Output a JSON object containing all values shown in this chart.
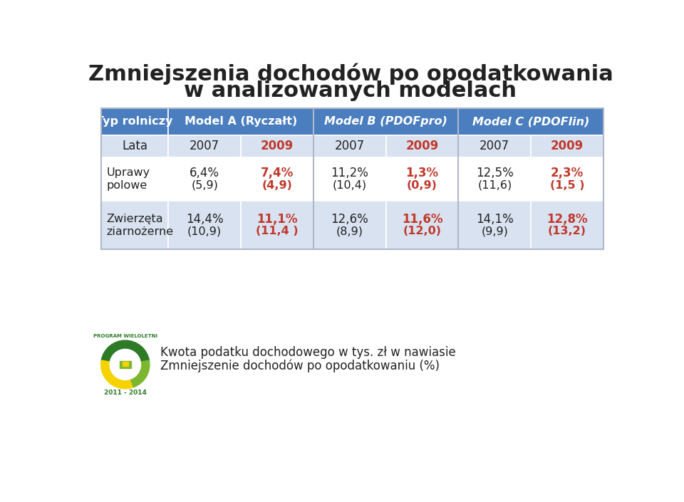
{
  "title_line1": "Zmniejszenia dochodów po opodatkowania",
  "title_line2": "w analizowanych modelach",
  "title_fontsize": 22,
  "background_color": "#ffffff",
  "header_bg_color": "#4a7ebf",
  "header_text_color": "#ffffff",
  "row_bg_light": "#d9e2f0",
  "row_bg_white": "#ffffff",
  "col1_header": "Typ rolniczy",
  "year_row_label": "Lata",
  "years": [
    "2007",
    "2009",
    "2007",
    "2009",
    "2007",
    "2009"
  ],
  "year_colors": [
    "#222222",
    "#c0392b",
    "#222222",
    "#c0392b",
    "#222222",
    "#c0392b"
  ],
  "row_labels": [
    "Uprawy\npolowe",
    "Zwierzęta\nziarnоżerne"
  ],
  "data": [
    [
      {
        "pct": "6,4%",
        "val": "(5,9)",
        "color": "#222222"
      },
      {
        "pct": "7,4%",
        "val": "(4,9)",
        "color": "#c0392b"
      },
      {
        "pct": "11,2%",
        "val": "(10,4)",
        "color": "#222222"
      },
      {
        "pct": "1,3%",
        "val": "(0,9)",
        "color": "#c0392b"
      },
      {
        "pct": "12,5%",
        "val": "(11,6)",
        "color": "#222222"
      },
      {
        "pct": "2,3%",
        "val": "(1,5 )",
        "color": "#c0392b"
      }
    ],
    [
      {
        "pct": "14,4%",
        "val": "(10,9)",
        "color": "#222222"
      },
      {
        "pct": "11,1%",
        "val": "(11,4 )",
        "color": "#c0392b"
      },
      {
        "pct": "12,6%",
        "val": "(8,9)",
        "color": "#222222"
      },
      {
        "pct": "11,6%",
        "val": "(12,0)",
        "color": "#c0392b"
      },
      {
        "pct": "14,1%",
        "val": "(9,9)",
        "color": "#222222"
      },
      {
        "pct": "12,8%",
        "val": "(13,2)",
        "color": "#c0392b"
      }
    ]
  ],
  "footer_text1": "Kwota podatku dochodowego w tys. zł w nawiasie",
  "footer_text2": "Zmniejszenie dochodów po opodatkowaniu (%)"
}
